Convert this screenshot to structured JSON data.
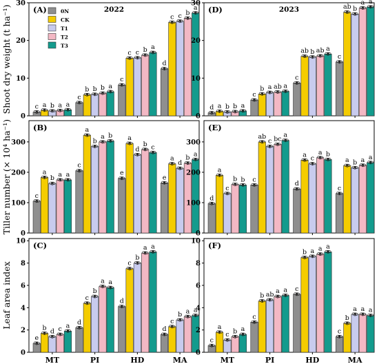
{
  "figure": {
    "x_tick_labels": [
      "MT",
      "PI",
      "HD",
      "MA"
    ],
    "legend": {
      "entries": [
        "0N",
        "CK",
        "T1",
        "T2",
        "T3"
      ],
      "colors": [
        "#8f8f8f",
        "#f4cc00",
        "#c8cbee",
        "#f3b8c4",
        "#139b8d"
      ]
    }
  },
  "chart_data": [
    {
      "type": "bar",
      "panel": "(A)",
      "year": "2022",
      "ylabel": "Shoot dry weight (t ha⁻¹)",
      "ylim": [
        0,
        30
      ],
      "yticks": [
        0,
        10,
        20,
        30
      ],
      "categories": [
        "MT",
        "PI",
        "HD",
        "MA"
      ],
      "series": [
        {
          "name": "0N",
          "values": [
            1.0,
            3.5,
            8.2,
            12.5
          ]
        },
        {
          "name": "CK",
          "values": [
            1.5,
            5.6,
            15.3,
            24.8
          ]
        },
        {
          "name": "T1",
          "values": [
            1.3,
            5.7,
            15.4,
            25.1
          ]
        },
        {
          "name": "T2",
          "values": [
            1.4,
            6.0,
            16.1,
            25.9
          ]
        },
        {
          "name": "T3",
          "values": [
            1.6,
            6.4,
            16.8,
            27.3
          ]
        }
      ],
      "letters": [
        [
          "c",
          "a",
          "b",
          "a",
          "a"
        ],
        [
          "c",
          "b",
          "b",
          "b",
          "a"
        ],
        [
          "c",
          "c",
          "c",
          "b",
          "a"
        ],
        [
          "d",
          "c",
          "c",
          "b",
          "a"
        ]
      ]
    },
    {
      "type": "bar",
      "panel": "(D)",
      "year": "2023",
      "ylabel": "",
      "ylim": [
        0,
        30
      ],
      "yticks": [
        0,
        10,
        20,
        30
      ],
      "categories": [
        "MT",
        "PI",
        "HD",
        "MA"
      ],
      "series": [
        {
          "name": "0N",
          "values": [
            0.8,
            4.2,
            8.7,
            14.3
          ]
        },
        {
          "name": "CK",
          "values": [
            1.2,
            5.8,
            15.8,
            27.5
          ]
        },
        {
          "name": "T1",
          "values": [
            1.0,
            6.2,
            15.6,
            27.0
          ]
        },
        {
          "name": "T2",
          "values": [
            1.1,
            6.3,
            15.9,
            28.6
          ]
        },
        {
          "name": "T3",
          "values": [
            1.3,
            6.5,
            16.4,
            28.9
          ]
        }
      ],
      "letters": [
        [
          "d",
          "a",
          "b",
          "b",
          "a"
        ],
        [
          "c",
          "b",
          "a",
          "ab",
          "a"
        ],
        [
          "c",
          "ab",
          "b",
          "ab",
          "a"
        ],
        [
          "c",
          "ab",
          "b",
          "a",
          "a"
        ]
      ]
    },
    {
      "type": "bar",
      "panel": "(B)",
      "ylabel": "Tiller number (× 10⁴ ha⁻¹)",
      "ylim": [
        0,
        370
      ],
      "yticks": [
        0,
        100,
        200,
        300
      ],
      "categories": [
        "MT",
        "PI",
        "HD",
        "MA"
      ],
      "series": [
        {
          "name": "0N",
          "values": [
            105,
            205,
            180,
            165
          ]
        },
        {
          "name": "CK",
          "values": [
            183,
            322,
            295,
            228
          ]
        },
        {
          "name": "T1",
          "values": [
            163,
            285,
            258,
            213
          ]
        },
        {
          "name": "T2",
          "values": [
            175,
            300,
            275,
            230
          ]
        },
        {
          "name": "T3",
          "values": [
            175,
            303,
            265,
            242
          ]
        }
      ],
      "letters": [
        [
          "c",
          "a",
          "b",
          "a",
          "a"
        ],
        [
          "c",
          "a",
          "b",
          "a",
          "b"
        ],
        [
          "e",
          "a",
          "d",
          "b",
          "c"
        ],
        [
          "e",
          "a",
          "d",
          "b",
          "a"
        ]
      ]
    },
    {
      "type": "bar",
      "panel": "(E)",
      "ylabel": "",
      "ylim": [
        0,
        370
      ],
      "yticks": [
        0,
        100,
        200,
        300
      ],
      "categories": [
        "MT",
        "PI",
        "HD",
        "MA"
      ],
      "series": [
        {
          "name": "0N",
          "values": [
            97,
            158,
            145,
            130
          ]
        },
        {
          "name": "CK",
          "values": [
            190,
            300,
            240,
            222
          ]
        },
        {
          "name": "T1",
          "values": [
            130,
            285,
            228,
            215
          ]
        },
        {
          "name": "T2",
          "values": [
            160,
            292,
            248,
            223
          ]
        },
        {
          "name": "T3",
          "values": [
            158,
            305,
            242,
            232
          ]
        }
      ],
      "letters": [
        [
          "d",
          "a",
          "c",
          "b",
          "b"
        ],
        [
          "c",
          "ab",
          "c",
          "bc",
          "a"
        ],
        [
          "d",
          "a",
          "c",
          "a",
          "b"
        ],
        [
          "c",
          "a",
          "b",
          "a",
          "a"
        ]
      ]
    },
    {
      "type": "bar",
      "panel": "(C)",
      "ylabel": "Leaf area index",
      "ylim": [
        0,
        10.2
      ],
      "yticks": [
        0,
        2,
        4,
        6,
        8,
        10
      ],
      "categories": [
        "MT",
        "PI",
        "HD",
        "MA"
      ],
      "series": [
        {
          "name": "0N",
          "values": [
            0.8,
            2.2,
            4.1,
            1.6
          ]
        },
        {
          "name": "CK",
          "values": [
            1.7,
            4.4,
            7.5,
            2.3
          ]
        },
        {
          "name": "T1",
          "values": [
            1.4,
            5.0,
            8.0,
            2.9
          ]
        },
        {
          "name": "T2",
          "values": [
            1.6,
            5.9,
            8.9,
            3.2
          ]
        },
        {
          "name": "T3",
          "values": [
            1.9,
            5.8,
            9.0,
            3.3
          ]
        }
      ],
      "letters": [
        [
          "e",
          "b",
          "d",
          "c",
          "a"
        ],
        [
          "d",
          "c",
          "b",
          "a",
          "a"
        ],
        [
          "d",
          "c",
          "b",
          "a",
          "a"
        ],
        [
          "d",
          "c",
          "b",
          "a",
          "a"
        ]
      ]
    },
    {
      "type": "bar",
      "panel": "(F)",
      "ylabel": "",
      "ylim": [
        0,
        10.2
      ],
      "yticks": [
        0,
        2,
        4,
        6,
        8,
        10
      ],
      "categories": [
        "MT",
        "PI",
        "HD",
        "MA"
      ],
      "series": [
        {
          "name": "0N",
          "values": [
            0.6,
            2.7,
            5.2,
            1.4
          ]
        },
        {
          "name": "CK",
          "values": [
            1.8,
            4.6,
            8.5,
            2.6
          ]
        },
        {
          "name": "T1",
          "values": [
            1.1,
            4.7,
            8.6,
            3.4
          ]
        },
        {
          "name": "T2",
          "values": [
            1.4,
            5.0,
            8.8,
            3.4
          ]
        },
        {
          "name": "T3",
          "values": [
            1.6,
            5.1,
            9.0,
            3.3
          ]
        }
      ],
      "letters": [
        [
          "c",
          "a",
          "c",
          "b",
          "a"
        ],
        [
          "c",
          "b",
          "ab",
          "a",
          "a"
        ],
        [
          "c",
          "b",
          "a",
          "a",
          "a"
        ],
        [
          "c",
          "b",
          "a",
          "a",
          "a"
        ]
      ]
    }
  ]
}
